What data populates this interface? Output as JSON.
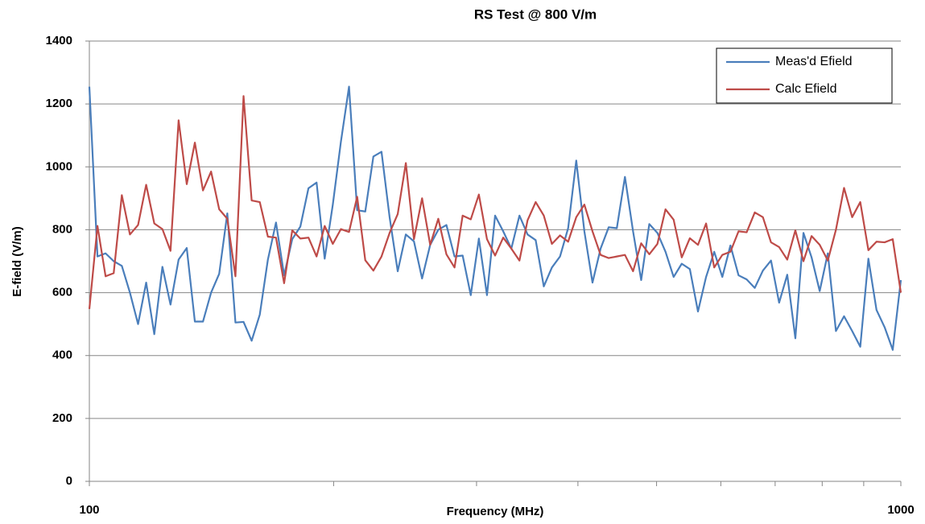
{
  "chart_data": {
    "type": "line",
    "title": "RS Test @ 800 V/m",
    "xlabel": "Frequency (MHz)",
    "ylabel": "E-field (V/m)",
    "x": [
      100,
      102.33,
      104.71,
      107.15,
      109.65,
      112.2,
      114.82,
      117.49,
      120.23,
      123.03,
      125.89,
      128.82,
      131.83,
      134.9,
      138.04,
      141.25,
      144.54,
      147.91,
      151.36,
      154.88,
      158.49,
      162.18,
      165.96,
      169.82,
      173.78,
      177.83,
      181.97,
      186.21,
      190.55,
      194.98,
      199.53,
      204.17,
      208.93,
      213.8,
      218.78,
      223.87,
      229.09,
      234.42,
      239.88,
      245.47,
      251.19,
      257.04,
      263.03,
      269.15,
      275.42,
      281.84,
      288.4,
      295.12,
      301.99,
      309.03,
      316.23,
      323.59,
      331.13,
      338.84,
      346.74,
      354.81,
      363.08,
      371.54,
      380.19,
      389.05,
      398.11,
      407.38,
      416.87,
      426.58,
      436.52,
      446.68,
      457.09,
      467.74,
      478.63,
      489.78,
      501.19,
      512.86,
      524.81,
      537.03,
      549.54,
      562.34,
      575.44,
      588.84,
      602.56,
      616.6,
      630.96,
      645.65,
      660.69,
      676.08,
      691.83,
      707.95,
      724.44,
      741.31,
      758.58,
      776.25,
      794.33,
      812.83,
      831.76,
      851.14,
      870.96,
      891.25,
      912.01,
      933.25,
      954.99,
      977.24,
      1000
    ],
    "series": [
      {
        "name": "Meas'd Efield",
        "color": "#4a7ebb",
        "values": [
          1255,
          715,
          725,
          700,
          685,
          600,
          500,
          632,
          468,
          682,
          562,
          705,
          742,
          508,
          508,
          600,
          660,
          852,
          505,
          507,
          447,
          530,
          705,
          823,
          655,
          770,
          810,
          932,
          950,
          708,
          880,
          1080,
          1255,
          862,
          858,
          1033,
          1048,
          840,
          668,
          785,
          763,
          645,
          752,
          800,
          815,
          715,
          718,
          592,
          772,
          592,
          845,
          795,
          740,
          845,
          785,
          767,
          620,
          680,
          715,
          805,
          1020,
          795,
          632,
          740,
          808,
          805,
          968,
          795,
          640,
          818,
          790,
          730,
          650,
          692,
          675,
          540,
          650,
          730,
          650,
          750,
          655,
          642,
          615,
          670,
          702,
          568,
          657,
          455,
          790,
          712,
          605,
          725,
          478,
          525,
          478,
          428,
          708,
          545,
          490,
          418,
          640
        ]
      },
      {
        "name": "Calc Efield",
        "color": "#be4b48",
        "values": [
          548,
          812,
          652,
          662,
          910,
          785,
          815,
          943,
          820,
          802,
          733,
          1148,
          945,
          1077,
          925,
          985,
          865,
          835,
          652,
          1225,
          893,
          888,
          778,
          775,
          630,
          798,
          772,
          775,
          715,
          812,
          755,
          802,
          793,
          905,
          703,
          670,
          715,
          790,
          850,
          1012,
          770,
          900,
          752,
          835,
          722,
          680,
          845,
          833,
          912,
          770,
          718,
          775,
          740,
          702,
          830,
          888,
          845,
          755,
          782,
          762,
          840,
          880,
          795,
          720,
          710,
          715,
          720,
          668,
          757,
          722,
          755,
          865,
          832,
          712,
          773,
          752,
          820,
          680,
          720,
          730,
          795,
          792,
          855,
          840,
          760,
          745,
          705,
          798,
          700,
          780,
          752,
          702,
          800,
          933,
          840,
          888,
          735,
          762,
          760,
          770,
          600
        ]
      }
    ],
    "xlim": [
      100,
      1000
    ],
    "xticks": [
      100,
      1000
    ],
    "xminor_ticks": [
      200,
      300,
      400,
      500,
      600,
      700,
      800,
      900
    ],
    "xscale": "log",
    "ylim": [
      0,
      1400
    ],
    "yticks": [
      0,
      200,
      400,
      600,
      800,
      1000,
      1200,
      1400
    ],
    "grid": true,
    "legend": "upper right"
  }
}
